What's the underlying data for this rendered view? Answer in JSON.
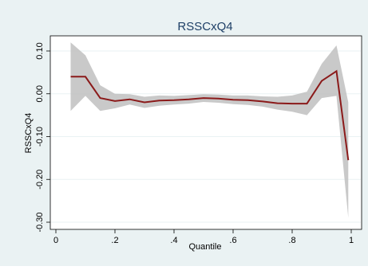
{
  "chart_data": {
    "type": "line",
    "title": "RSSCxQ4",
    "xlabel": "Quantile",
    "ylabel": "RSSCxQ4",
    "xlim": [
      0,
      1
    ],
    "ylim": [
      -0.3,
      0.1
    ],
    "x_ticks": [
      {
        "value": 0,
        "label": "0"
      },
      {
        "value": 0.2,
        "label": ".2"
      },
      {
        "value": 0.4,
        "label": ".4"
      },
      {
        "value": 0.6,
        "label": ".6"
      },
      {
        "value": 0.8,
        "label": ".8"
      },
      {
        "value": 1,
        "label": "1"
      }
    ],
    "y_ticks": [
      {
        "value": 0.1,
        "label": "0.10"
      },
      {
        "value": 0.0,
        "label": "0.00"
      },
      {
        "value": -0.1,
        "label": "-0.10"
      },
      {
        "value": -0.2,
        "label": "-0.20"
      },
      {
        "value": -0.3,
        "label": "-0.30"
      }
    ],
    "grid": "horizontal",
    "legend": "none",
    "colors": {
      "outer_background": "#eaf2f3",
      "plot_background": "#ffffff",
      "title": "#1e3f66",
      "line": "#8b1a1a",
      "band": "#bfbfbf",
      "grid": "#eaf2f3"
    },
    "series": [
      {
        "x": [
          0.05,
          0.1,
          0.15,
          0.2,
          0.25,
          0.3,
          0.35,
          0.4,
          0.45,
          0.5,
          0.55,
          0.6,
          0.65,
          0.7,
          0.75,
          0.8,
          0.85,
          0.9,
          0.95,
          0.99
        ],
        "y": [
          0.04,
          0.04,
          -0.01,
          -0.017,
          -0.013,
          -0.02,
          -0.016,
          -0.015,
          -0.013,
          -0.01,
          -0.011,
          -0.014,
          -0.015,
          -0.018,
          -0.022,
          -0.023,
          -0.023,
          0.03,
          0.053,
          -0.155
        ],
        "lower": [
          -0.04,
          -0.005,
          -0.04,
          -0.034,
          -0.025,
          -0.033,
          -0.028,
          -0.025,
          -0.023,
          -0.019,
          -0.021,
          -0.024,
          -0.026,
          -0.03,
          -0.037,
          -0.042,
          -0.05,
          -0.01,
          -0.005,
          -0.29
        ],
        "upper": [
          0.12,
          0.09,
          0.02,
          0.0,
          -0.001,
          -0.007,
          -0.004,
          -0.005,
          -0.003,
          -0.001,
          -0.002,
          -0.004,
          -0.004,
          -0.006,
          -0.007,
          -0.004,
          0.005,
          0.07,
          0.113,
          -0.02
        ]
      }
    ]
  }
}
